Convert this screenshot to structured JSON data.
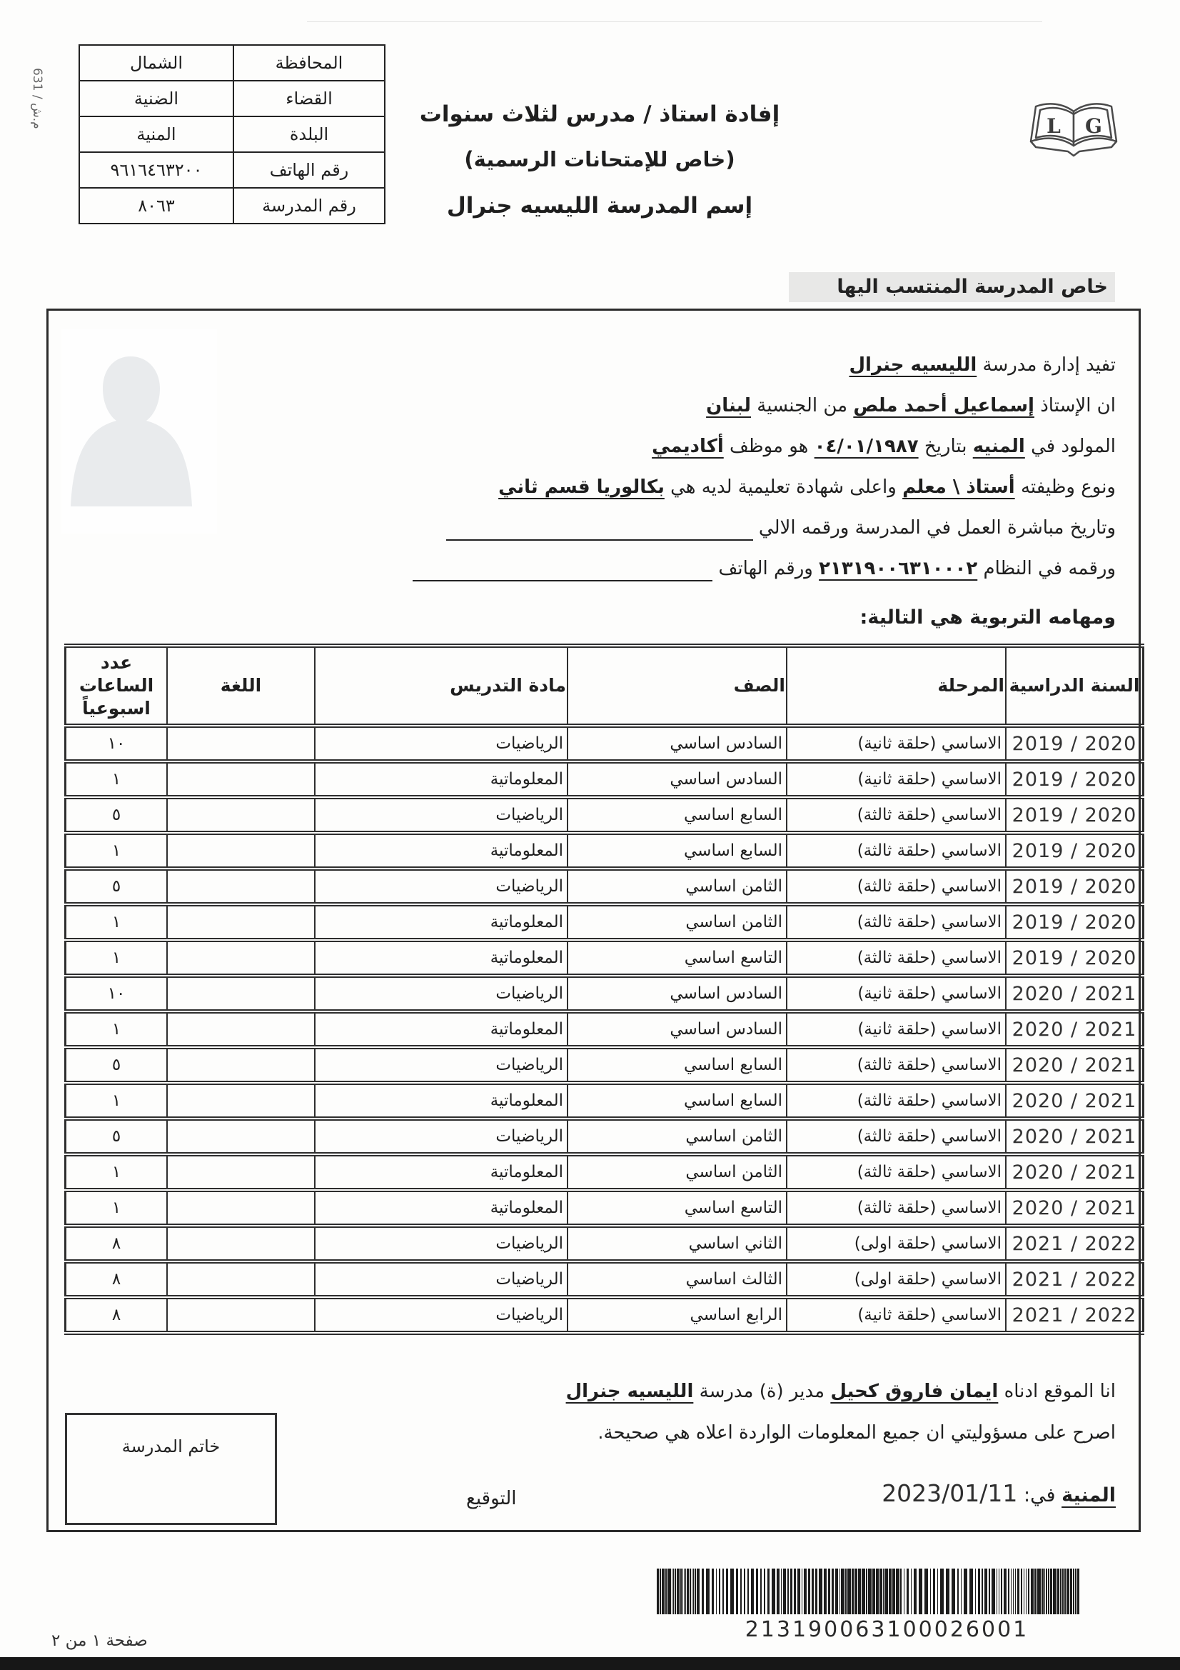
{
  "page": {
    "side_code": "631 / م.ش",
    "footer": "صفحة ١ من ٢"
  },
  "info_table": {
    "rows": [
      {
        "label": "المحافظة",
        "value": "الشمال"
      },
      {
        "label": "القضاء",
        "value": "الضنية"
      },
      {
        "label": "البلدة",
        "value": "المنية"
      },
      {
        "label": "رقم الهاتف",
        "value": "٩٦١٦٤٦٣٢٠٠"
      },
      {
        "label": "رقم المدرسة",
        "value": "٨٠٦٣"
      }
    ]
  },
  "header": {
    "title_line1": "إفادة استاذ / مدرس لثلاث سنوات",
    "title_line2": "(خاص للإمتحانات الرسمية)",
    "title_line3": "إسم المدرسة الليسيه جنرال",
    "logo_letter_left": "L",
    "logo_letter_right": "G"
  },
  "section_bar": {
    "label": "خاص المدرسة المنتسب اليها",
    "bg": "#e8e8e7"
  },
  "statement": {
    "lines": [
      [
        {
          "t": "تفيد إدارة مدرسة "
        },
        {
          "t": "الليسيه جنرال",
          "u": true
        }
      ],
      [
        {
          "t": "ان الإستاذ "
        },
        {
          "t": "إسماعيل أحمد ملص",
          "u": true
        },
        {
          "t": " من الجنسية "
        },
        {
          "t": "لبنان",
          "u": true
        }
      ],
      [
        {
          "t": "المولود في "
        },
        {
          "t": "المنيه",
          "u": true
        },
        {
          "t": " بتاريخ "
        },
        {
          "t": "٠٤/٠١/١٩٨٧",
          "u": true,
          "ltr": true
        },
        {
          "t": " هو موظف "
        },
        {
          "t": "أكاديمي",
          "u": true
        }
      ],
      [
        {
          "t": "ونوع وظيفته "
        },
        {
          "t": "أستاذ \\ معلم",
          "u": true
        },
        {
          "t": " واعلى شهادة تعليمية لديه هي "
        },
        {
          "t": "بكالوريا قسم ثاني",
          "u": true
        }
      ],
      [
        {
          "t": "وتاريخ مباشرة العمل في المدرسة ورقمه الالي "
        },
        {
          "blank": 430
        }
      ],
      [
        {
          "t": "ورقمه في النظام "
        },
        {
          "t": "٢١٣١٩٠٠٦٣١٠٠٠٢",
          "u": true,
          "ltr": true
        },
        {
          "t": " ورقم الهاتف "
        },
        {
          "blank": 420
        }
      ]
    ]
  },
  "duties": {
    "heading": "ومهامه التربوية هي التالية:",
    "columns": [
      [
        "السنة الدراسية"
      ],
      [
        "المرحلة"
      ],
      [
        "الصف"
      ],
      [
        "مادة التدريس"
      ],
      [
        "اللغة"
      ],
      [
        "عدد",
        "الساعات",
        "اسبوعياً"
      ]
    ],
    "col_keys": [
      "year",
      "stage",
      "class",
      "subject",
      "language",
      "weekly-hours"
    ],
    "rows": [
      [
        "2019 / 2020",
        "الاساسي (حلقة ثانية)",
        "السادس اساسي",
        "الرياضيات",
        "",
        "١٠"
      ],
      [
        "2019 / 2020",
        "الاساسي (حلقة ثانية)",
        "السادس اساسي",
        "المعلوماتية",
        "",
        "١"
      ],
      [
        "2019 / 2020",
        "الاساسي (حلقة ثالثة)",
        "السابع اساسي",
        "الرياضيات",
        "",
        "٥"
      ],
      [
        "2019 / 2020",
        "الاساسي (حلقة ثالثة)",
        "السابع اساسي",
        "المعلوماتية",
        "",
        "١"
      ],
      [
        "2019 / 2020",
        "الاساسي (حلقة ثالثة)",
        "الثامن اساسي",
        "الرياضيات",
        "",
        "٥"
      ],
      [
        "2019 / 2020",
        "الاساسي (حلقة ثالثة)",
        "الثامن اساسي",
        "المعلوماتية",
        "",
        "١"
      ],
      [
        "2019 / 2020",
        "الاساسي (حلقة ثالثة)",
        "التاسع اساسي",
        "المعلوماتية",
        "",
        "١"
      ],
      [
        "2020 / 2021",
        "الاساسي (حلقة ثانية)",
        "السادس اساسي",
        "الرياضيات",
        "",
        "١٠"
      ],
      [
        "2020 / 2021",
        "الاساسي (حلقة ثانية)",
        "السادس اساسي",
        "المعلوماتية",
        "",
        "١"
      ],
      [
        "2020 / 2021",
        "الاساسي (حلقة ثالثة)",
        "السابع اساسي",
        "الرياضيات",
        "",
        "٥"
      ],
      [
        "2020 / 2021",
        "الاساسي (حلقة ثالثة)",
        "السابع اساسي",
        "المعلوماتية",
        "",
        "١"
      ],
      [
        "2020 / 2021",
        "الاساسي (حلقة ثالثة)",
        "الثامن اساسي",
        "الرياضيات",
        "",
        "٥"
      ],
      [
        "2020 / 2021",
        "الاساسي (حلقة ثالثة)",
        "الثامن اساسي",
        "المعلوماتية",
        "",
        "١"
      ],
      [
        "2020 / 2021",
        "الاساسي (حلقة ثالثة)",
        "التاسع اساسي",
        "المعلوماتية",
        "",
        "١"
      ],
      [
        "2021 / 2022",
        "الاساسي (حلقة اولى)",
        "الثاني اساسي",
        "الرياضيات",
        "",
        "٨"
      ],
      [
        "2021 / 2022",
        "الاساسي (حلقة اولى)",
        "الثالث اساسي",
        "الرياضيات",
        "",
        "٨"
      ],
      [
        "2021 / 2022",
        "الاساسي (حلقة ثانية)",
        "الرابع اساسي",
        "الرياضيات",
        "",
        "٨"
      ]
    ]
  },
  "declaration": {
    "lines": [
      [
        {
          "t": "انا الموقع ادناه "
        },
        {
          "t": "ايمان فاروق كحيل",
          "u": true
        },
        {
          "t": " مدير (ة) مدرسة "
        },
        {
          "t": "الليسيه جنرال",
          "u": true
        }
      ],
      [
        {
          "t": "اصرح على مسؤوليتي ان جميع المعلومات الواردة اعلاه هي صحيحة."
        }
      ]
    ]
  },
  "signature": {
    "stamp_label": "خاتم المدرسة",
    "date_line": [
      {
        "t": "المنية",
        "u": true
      },
      {
        "t": " في: "
      },
      {
        "t": "2023/01/11",
        "ltr": true,
        "big": true
      }
    ],
    "signature_label": "التوقيع"
  },
  "barcode": {
    "number": "213190063100026001"
  }
}
